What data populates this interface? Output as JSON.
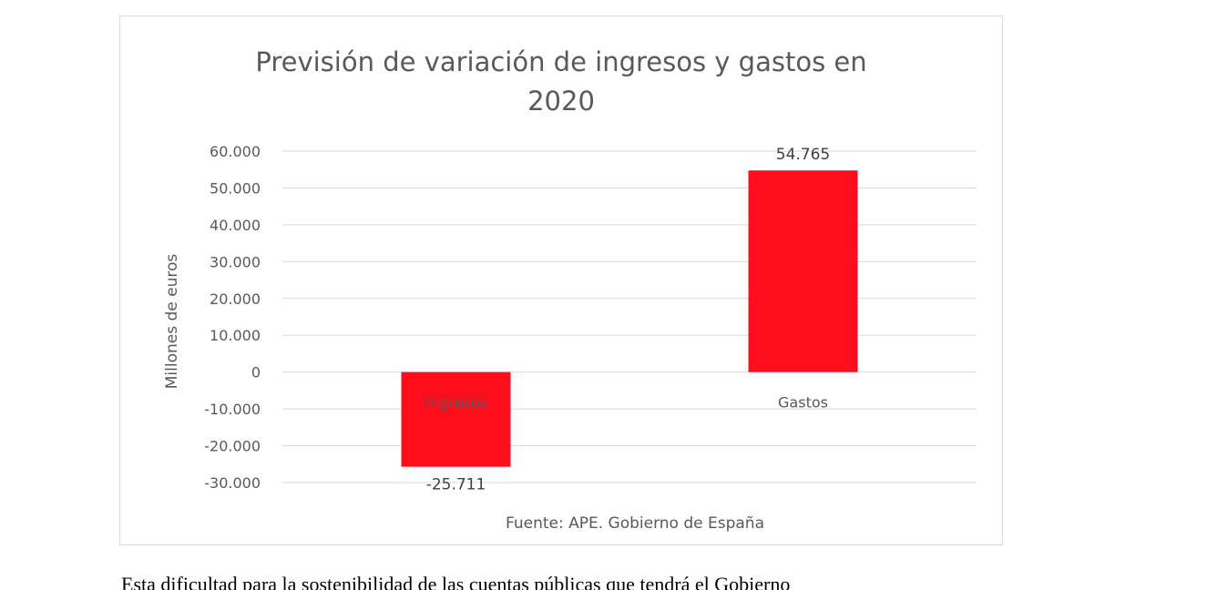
{
  "chart_data": {
    "type": "bar",
    "title": "Previsión de variación de ingresos y gastos en 2020",
    "title_lines": [
      "Previsión de variación de ingresos y gastos en",
      "2020"
    ],
    "ylabel": "Millones de euros",
    "xlabel": "",
    "categories": [
      "Ingresos",
      "Gastos"
    ],
    "values": [
      -25711,
      54765
    ],
    "value_labels": [
      "-25.711",
      "54.765"
    ],
    "ylim": [
      -30000,
      60000
    ],
    "yticks": [
      60000,
      50000,
      40000,
      30000,
      20000,
      10000,
      0,
      -10000,
      -20000,
      -30000
    ],
    "ytick_labels": [
      "60.000",
      "50.000",
      "40.000",
      "30.000",
      "20.000",
      "10.000",
      "0",
      "-10.000",
      "-20.000",
      "-30.000"
    ],
    "grid": true,
    "legend": "none",
    "bar_color": "#ff0d1c",
    "source_note": "Fuente: APE. Gobierno de España"
  },
  "body_text": "Esta dificultad para la sostenibilidad de las cuentas públicas que tendrá el Gobierno"
}
